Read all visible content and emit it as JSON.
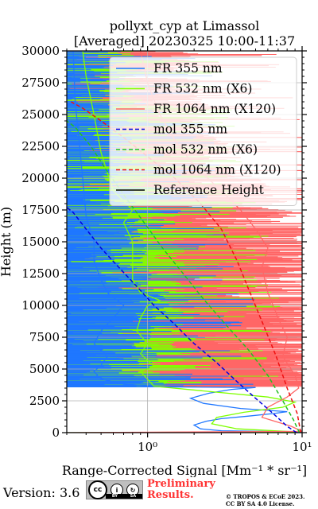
{
  "chart_data": {
    "type": "line",
    "title": "pollyxt_cyp at Limassol",
    "subtitle": "[Averaged] 20230325 10:00-11:37",
    "xlabel": "Range-Corrected Signal [Mm⁻¹ * sr⁻¹]",
    "ylabel": "Height (m)",
    "xscale": "log",
    "xlim": [
      0.3,
      10
    ],
    "ylim": [
      0,
      30000
    ],
    "x_ticks": [
      1,
      10
    ],
    "x_tick_labels": [
      "10⁰",
      "10¹"
    ],
    "y_ticks": [
      0,
      2500,
      5000,
      7500,
      10000,
      12500,
      15000,
      17500,
      20000,
      22500,
      25000,
      27500,
      30000
    ],
    "y_tick_labels": [
      "0",
      "2500",
      "5000",
      "7500",
      "10000",
      "12500",
      "15000",
      "17500",
      "20000",
      "22500",
      "25000",
      "27500",
      "30000"
    ],
    "grid": true,
    "legend_position": "top-right",
    "series": [
      {
        "name": "FR 355 nm",
        "style": "solid",
        "color": "#1f77ff",
        "points": [
          [
            0.3,
            0
          ],
          [
            10,
            50
          ],
          [
            3.0,
            150
          ],
          [
            2.2,
            300
          ],
          [
            2.0,
            600
          ],
          [
            2.4,
            900
          ],
          [
            3.0,
            1100
          ],
          [
            4.5,
            1300
          ],
          [
            6.5,
            1500
          ],
          [
            8.0,
            1650
          ],
          [
            4.0,
            1900
          ],
          [
            2.3,
            2300
          ],
          [
            1.9,
            2700
          ],
          [
            2.5,
            3100
          ],
          [
            3.5,
            3400
          ],
          [
            5,
            3550
          ],
          [
            1.1,
            3600
          ],
          [
            0.7,
            3800
          ],
          [
            0.5,
            4200
          ],
          [
            0.45,
            4800
          ],
          [
            0.5,
            5300
          ],
          [
            0.55,
            6000
          ],
          [
            0.45,
            7000
          ],
          [
            0.5,
            8000
          ],
          [
            0.6,
            9000
          ],
          [
            0.7,
            10000
          ],
          [
            0.55,
            11000
          ],
          [
            0.5,
            12000
          ],
          [
            0.45,
            13500
          ],
          [
            0.45,
            15000
          ],
          [
            0.4,
            17000
          ],
          [
            0.38,
            20000
          ],
          [
            0.36,
            23000
          ],
          [
            0.34,
            26000
          ],
          [
            0.33,
            30000
          ]
        ]
      },
      {
        "name": "FR 532 nm (X6)",
        "style": "solid",
        "color": "#7fff00",
        "points": [
          [
            0.3,
            0
          ],
          [
            9,
            60
          ],
          [
            3.8,
            300
          ],
          [
            2.6,
            700
          ],
          [
            2.8,
            1200
          ],
          [
            4.2,
            1600
          ],
          [
            7.5,
            2000
          ],
          [
            9,
            2400
          ],
          [
            6,
            2800
          ],
          [
            2.2,
            3300
          ],
          [
            1.1,
            3650
          ],
          [
            1.0,
            4200
          ],
          [
            0.9,
            4800
          ],
          [
            1.1,
            5200
          ],
          [
            0.9,
            6200
          ],
          [
            1.0,
            7000
          ],
          [
            0.85,
            8000
          ],
          [
            0.9,
            9000
          ],
          [
            1.0,
            10000
          ],
          [
            1.2,
            10400
          ],
          [
            0.9,
            11000
          ],
          [
            0.8,
            12000
          ],
          [
            0.8,
            13500
          ],
          [
            0.8,
            15000
          ],
          [
            0.7,
            16500
          ],
          [
            0.8,
            17500
          ],
          [
            0.6,
            19000
          ],
          [
            0.5,
            22000
          ],
          [
            0.45,
            25000
          ],
          [
            0.4,
            28000
          ],
          [
            0.38,
            30000
          ]
        ]
      },
      {
        "name": "FR 1064 nm (X120)",
        "style": "solid",
        "color": "#ff6666",
        "points": [
          [
            0.3,
            0
          ],
          [
            10,
            100
          ],
          [
            8.5,
            500
          ],
          [
            5.5,
            1200
          ],
          [
            6.0,
            2000
          ],
          [
            8.0,
            2800
          ],
          [
            9.5,
            3500
          ],
          [
            9,
            4500
          ],
          [
            7.5,
            6000
          ],
          [
            8,
            7500
          ],
          [
            7,
            9000
          ],
          [
            6,
            11000
          ],
          [
            5.5,
            13000
          ],
          [
            6,
            14500
          ],
          [
            5,
            16000
          ],
          [
            4,
            17500
          ],
          [
            3,
            19000
          ],
          [
            2,
            21000
          ],
          [
            1.5,
            23000
          ],
          [
            1.2,
            25000
          ],
          [
            1.0,
            27500
          ],
          [
            0.9,
            30000
          ]
        ]
      },
      {
        "name": "mol 355 nm",
        "style": "dashed",
        "color": "#0000e0",
        "points": [
          [
            9.2,
            0
          ],
          [
            8.0,
            500
          ],
          [
            6.5,
            1500
          ],
          [
            5.0,
            2700
          ],
          [
            3.8,
            4000
          ],
          [
            2.8,
            5500
          ],
          [
            2.0,
            7000
          ],
          [
            1.5,
            8500
          ],
          [
            1.1,
            10000
          ],
          [
            0.85,
            11500
          ],
          [
            0.65,
            13000
          ],
          [
            0.5,
            14500
          ],
          [
            0.4,
            16000
          ],
          [
            0.33,
            17300
          ],
          [
            0.3,
            17700
          ]
        ]
      },
      {
        "name": "mol 532 nm (X6)",
        "style": "dashed",
        "color": "#22c022",
        "points": [
          [
            9.6,
            0
          ],
          [
            8.8,
            1000
          ],
          [
            7.5,
            2500
          ],
          [
            6.0,
            4500
          ],
          [
            4.5,
            6500
          ],
          [
            3.2,
            8500
          ],
          [
            2.3,
            10500
          ],
          [
            1.7,
            12500
          ],
          [
            1.25,
            14500
          ],
          [
            0.95,
            16500
          ],
          [
            0.72,
            18500
          ],
          [
            0.55,
            20500
          ],
          [
            0.43,
            22500
          ],
          [
            0.34,
            24000
          ],
          [
            0.3,
            24500
          ]
        ]
      },
      {
        "name": "mol 1064 nm (X120)",
        "style": "dashed",
        "color": "#ee1111",
        "points": [
          [
            9.8,
            0
          ],
          [
            9.3,
            1500
          ],
          [
            8.0,
            3500
          ],
          [
            6.8,
            6000
          ],
          [
            5.6,
            8500
          ],
          [
            4.6,
            11000
          ],
          [
            3.8,
            13500
          ],
          [
            3.0,
            16000
          ],
          [
            2.2,
            18000
          ],
          [
            1.5,
            20000
          ],
          [
            1.0,
            21700
          ],
          [
            0.7,
            23200
          ],
          [
            0.5,
            24500
          ],
          [
            0.38,
            25500
          ],
          [
            0.32,
            26000
          ]
        ]
      },
      {
        "name": "Reference Height",
        "style": "solid",
        "color": "#000000",
        "points": []
      }
    ]
  },
  "footer": {
    "version": "Version: 3.6",
    "cc_logo": "cc",
    "cc_strip_by": "BY",
    "cc_strip_sa": "SA",
    "preliminary_line1": "Preliminary",
    "preliminary_line2": "Results.",
    "copyright_line1": "© TROPOS & ECoE 2023.",
    "copyright_line2": "CC BY SA 4.0 License."
  }
}
